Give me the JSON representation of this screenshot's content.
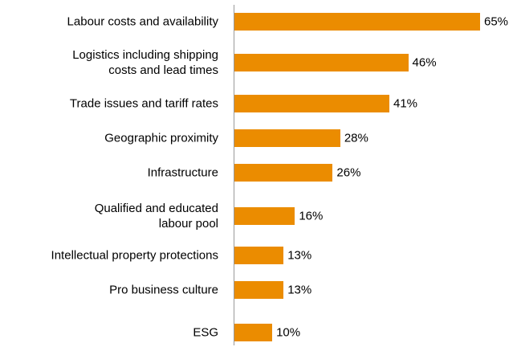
{
  "chart_data": {
    "type": "bar",
    "orientation": "horizontal",
    "categories": [
      "Labour costs and availability",
      "Logistics including shipping\ncosts and lead times",
      "Trade issues and tariff rates",
      "Geographic proximity",
      "Infrastructure",
      "Qualified and educated\nlabour pool",
      "Intellectual property protections",
      "Pro business culture",
      "ESG"
    ],
    "values": [
      65,
      46,
      41,
      28,
      26,
      16,
      13,
      13,
      10
    ],
    "value_labels": [
      "65%",
      "46%",
      "41%",
      "28%",
      "26%",
      "16%",
      "13%",
      "13%",
      "10%"
    ],
    "color": "#eb8c00"
  }
}
